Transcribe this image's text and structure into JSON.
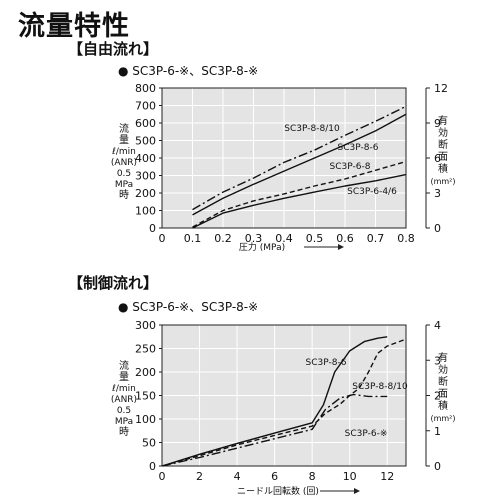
{
  "page": {
    "title": "流量特性"
  },
  "chart_data": [
    {
      "type": "line",
      "section_title": "【自由流れ】",
      "legend_text": "● SC3P-6-※、SC3P-8-※",
      "xlabel": "圧力 (MPa)",
      "ylabel_left": [
        "流",
        "量",
        "ℓ/min",
        "(ANR)",
        "0.5",
        "MPa",
        "時"
      ],
      "ylabel_right": [
        "有",
        "効",
        "断",
        "面",
        "積",
        "(mm²)"
      ],
      "xlim": [
        0,
        0.8
      ],
      "ylim": [
        0,
        800
      ],
      "ylim_right": [
        0,
        12
      ],
      "x_ticks": [
        0,
        0.1,
        0.2,
        0.3,
        0.4,
        0.5,
        0.6,
        0.7,
        0.8
      ],
      "y_ticks": [
        0,
        100,
        200,
        300,
        400,
        500,
        600,
        700,
        800
      ],
      "y2_ticks": [
        0,
        3,
        6,
        9,
        12
      ],
      "grid": true,
      "series": [
        {
          "name": "SC3P-8-8/10",
          "style": "dashdot",
          "x": [
            0.1,
            0.2,
            0.3,
            0.4,
            0.5,
            0.6,
            0.7,
            0.8
          ],
          "y": [
            105,
            205,
            285,
            375,
            445,
            530,
            610,
            695
          ]
        },
        {
          "name": "SC3P-8-6",
          "style": "solid",
          "x": [
            0.1,
            0.2,
            0.3,
            0.4,
            0.5,
            0.6,
            0.7,
            0.8
          ],
          "y": [
            75,
            170,
            250,
            325,
            400,
            475,
            555,
            650
          ]
        },
        {
          "name": "SC3P-6-8",
          "style": "dashed",
          "x": [
            0.1,
            0.2,
            0.3,
            0.4,
            0.5,
            0.6,
            0.7,
            0.8
          ],
          "y": [
            5,
            100,
            155,
            195,
            240,
            280,
            330,
            380
          ]
        },
        {
          "name": "SC3P-6-4/6",
          "style": "solid",
          "x": [
            0.1,
            0.2,
            0.3,
            0.4,
            0.5,
            0.6,
            0.7,
            0.8
          ],
          "y": [
            0,
            85,
            130,
            170,
            205,
            240,
            270,
            305
          ]
        }
      ]
    },
    {
      "type": "line",
      "section_title": "【制御流れ】",
      "legend_text": "● SC3P-6-※、SC3P-8-※",
      "xlabel": "ニードル回転数 (回)",
      "ylabel_left": [
        "流",
        "量",
        "ℓ/min",
        "(ANR)",
        "0.5",
        "MPa",
        "時"
      ],
      "ylabel_right": [
        "有",
        "効",
        "断",
        "面",
        "積",
        "(mm²)"
      ],
      "xlim": [
        0,
        13
      ],
      "ylim": [
        0,
        300
      ],
      "ylim_right": [
        0,
        4
      ],
      "x_ticks": [
        0,
        2,
        4,
        6,
        8,
        10,
        12
      ],
      "y_ticks": [
        0,
        50,
        100,
        150,
        200,
        250,
        300
      ],
      "y2_ticks": [
        0,
        1,
        2,
        3,
        4
      ],
      "grid": true,
      "series": [
        {
          "name": "SC3P-8-6",
          "style": "solid",
          "x": [
            0,
            2,
            4,
            6,
            8,
            8.6,
            9.2,
            10,
            10.8,
            11.5,
            12
          ],
          "y": [
            0,
            25,
            48,
            70,
            92,
            130,
            200,
            245,
            265,
            272,
            275
          ]
        },
        {
          "name": "SC3P-8-8/10",
          "style": "dashed",
          "x": [
            0,
            2,
            4,
            6,
            8,
            8.7,
            9.5,
            10,
            10.5,
            11,
            11.5,
            12,
            13
          ],
          "y": [
            0,
            22,
            45,
            65,
            85,
            112,
            132,
            150,
            165,
            200,
            240,
            255,
            270
          ]
        },
        {
          "name": "SC3P-6-※",
          "style": "dashdot",
          "x": [
            0,
            2,
            4,
            6,
            8,
            8.7,
            9.5,
            10.2,
            11,
            12
          ],
          "y": [
            0,
            18,
            38,
            58,
            78,
            120,
            145,
            152,
            148,
            148
          ]
        }
      ]
    }
  ]
}
